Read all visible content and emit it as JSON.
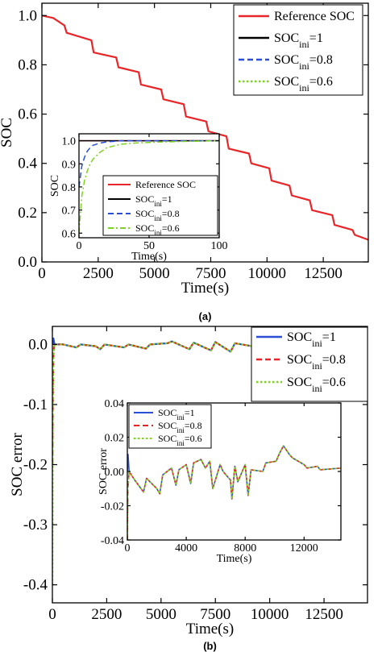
{
  "chart_data": [
    {
      "id": "a-main",
      "type": "line",
      "panel_label": "(a)",
      "title": "",
      "xlabel": "Time(s)",
      "ylabel": "SOC",
      "xlim": [
        0,
        14500
      ],
      "ylim": [
        0.0,
        1.05
      ],
      "xticks": [
        0,
        2500,
        5000,
        7500,
        10000,
        12500
      ],
      "xtick_labels": [
        "0",
        "2500",
        "5000",
        "7500",
        "10000",
        "12500"
      ],
      "yticks": [
        0.0,
        0.2,
        0.4,
        0.6,
        0.8,
        1.0
      ],
      "ytick_labels": [
        "0.0",
        "0.2",
        "0.4",
        "0.6",
        "0.8",
        "1.0"
      ],
      "legend_placement": "top-right",
      "series": [
        {
          "name": "Reference SOC",
          "legend_main": "Reference SOC",
          "legend_sub": "",
          "legend_suffix": "",
          "color": "#e8262a",
          "dash": "solid",
          "x": [
            0,
            500,
            1000,
            1100,
            2200,
            2300,
            3300,
            3400,
            4300,
            4400,
            5300,
            5400,
            6300,
            6400,
            7300,
            7400,
            8200,
            8300,
            9200,
            9300,
            10100,
            10200,
            11000,
            11100,
            11900,
            12000,
            12900,
            13000,
            13800,
            13900,
            14500
          ],
          "y": [
            1.0,
            0.99,
            0.96,
            0.93,
            0.9,
            0.85,
            0.83,
            0.79,
            0.77,
            0.72,
            0.7,
            0.66,
            0.64,
            0.59,
            0.57,
            0.53,
            0.51,
            0.46,
            0.44,
            0.4,
            0.38,
            0.33,
            0.31,
            0.27,
            0.25,
            0.21,
            0.19,
            0.15,
            0.13,
            0.11,
            0.09
          ]
        },
        {
          "name": "SOC_ini=1",
          "legend_main": "SOC",
          "legend_sub": "ini",
          "legend_suffix": "=1",
          "color": "#000000",
          "dash": "solid"
        },
        {
          "name": "SOC_ini=0.8",
          "legend_main": "SOC",
          "legend_sub": "ini",
          "legend_suffix": "=0.8",
          "color": "#2a4fd6",
          "dash": "dash"
        },
        {
          "name": "SOC_ini=0.6",
          "legend_main": "SOC",
          "legend_sub": "ini",
          "legend_suffix": "=0.6",
          "color": "#7ed321",
          "dash": "dot"
        }
      ]
    },
    {
      "id": "a-inset",
      "type": "line",
      "xlabel": "Time(s)",
      "ylabel": "SOC",
      "xlim": [
        0,
        100
      ],
      "ylim": [
        0.58,
        1.03
      ],
      "xticks": [
        0,
        50,
        100
      ],
      "xtick_labels": [
        "0",
        "50",
        "100"
      ],
      "yticks": [
        0.6,
        0.7,
        0.8,
        0.9,
        1.0
      ],
      "ytick_labels": [
        "0.6",
        "0.7",
        "0.8",
        "0.9",
        "1.0"
      ],
      "legend_placement": "bottom",
      "series": [
        {
          "name": "Reference SOC",
          "legend_main": "Reference SOC",
          "legend_sub": "",
          "legend_suffix": "",
          "color": "#e8262a",
          "dash": "solid",
          "x": [
            0,
            100
          ],
          "y": [
            1.0,
            1.0
          ]
        },
        {
          "name": "SOC_ini=1",
          "legend_main": "SOC",
          "legend_sub": "ini",
          "legend_suffix": "=1",
          "color": "#000000",
          "dash": "solid",
          "x": [
            0,
            100
          ],
          "y": [
            1.0,
            1.0
          ]
        },
        {
          "name": "SOC_ini=0.8",
          "legend_main": "SOC",
          "legend_sub": "ini",
          "legend_suffix": "=0.8",
          "color": "#2a4fd6",
          "dash": "dash",
          "x": [
            0,
            2,
            4,
            6,
            8,
            10,
            15,
            20,
            30,
            100
          ],
          "y": [
            0.8,
            0.89,
            0.93,
            0.955,
            0.97,
            0.98,
            0.99,
            0.995,
            1.0,
            1.0
          ]
        },
        {
          "name": "SOC_ini=0.6",
          "legend_main": "SOC",
          "legend_sub": "ini",
          "legend_suffix": "=0.6",
          "color": "#7ed321",
          "dash": "dashdot",
          "x": [
            0,
            2,
            4,
            6,
            8,
            10,
            15,
            20,
            30,
            40,
            60,
            100
          ],
          "y": [
            0.6,
            0.76,
            0.83,
            0.87,
            0.9,
            0.92,
            0.95,
            0.97,
            0.985,
            0.99,
            0.995,
            1.0
          ]
        }
      ]
    },
    {
      "id": "b-main",
      "type": "line",
      "panel_label": "(b)",
      "xlabel": "Time(s)",
      "ylabel": "SOC error",
      "xlim": [
        0,
        14500
      ],
      "ylim": [
        -0.43,
        0.03
      ],
      "xticks": [
        0,
        2500,
        5000,
        7500,
        10000,
        12500
      ],
      "xtick_labels": [
        "0",
        "2500",
        "5000",
        "7500",
        "10000",
        "12500"
      ],
      "yticks": [
        0.0,
        -0.1,
        -0.2,
        -0.3,
        -0.4
      ],
      "ytick_labels": [
        "0.0",
        "-0.1",
        "-0.2",
        "-0.3",
        "-0.4"
      ],
      "legend_placement": "top-right",
      "series": [
        {
          "name": "SOC_ini=1",
          "legend_main": "SOC",
          "legend_sub": "ini",
          "legend_suffix": "=1",
          "color": "#2a4fd6",
          "dash": "solid",
          "x": [
            0,
            50,
            100,
            500,
            1100,
            1300,
            2000,
            2200,
            2400,
            3300,
            3500,
            4300,
            4500,
            5300,
            5500,
            6300,
            6500,
            7300,
            7500,
            8200,
            8400,
            9200,
            9400,
            10100,
            10300,
            11000,
            11200,
            12000,
            12200,
            12900,
            13100,
            14500
          ],
          "y": [
            0.0,
            0.01,
            0.0,
            0.0,
            -0.005,
            0.0,
            -0.003,
            -0.008,
            0.0,
            -0.005,
            0.0,
            -0.007,
            0.0,
            0.002,
            0.005,
            -0.008,
            0.003,
            -0.01,
            0.004,
            -0.012,
            0.002,
            -0.003,
            0.004,
            0.0,
            0.003,
            -0.002,
            0.004,
            -0.004,
            0.003,
            0.002,
            0.0,
            0.0
          ]
        },
        {
          "name": "SOC_ini=0.8",
          "legend_main": "SOC",
          "legend_sub": "ini",
          "legend_suffix": "=0.8",
          "color": "#e8262a",
          "dash": "dash",
          "x": [
            0,
            30,
            60,
            100,
            500,
            1100,
            1300,
            2000,
            2200,
            2400,
            3300,
            3500,
            4300,
            4500,
            5300,
            5500,
            6300,
            6500,
            7300,
            7500,
            8200,
            8400,
            9200,
            9400,
            10100,
            10300,
            11000,
            11200,
            12000,
            12200,
            12900,
            13100,
            14500
          ],
          "y": [
            -0.2,
            -0.05,
            -0.01,
            0.0,
            0.0,
            -0.005,
            0.0,
            -0.003,
            -0.008,
            0.0,
            -0.005,
            0.0,
            -0.007,
            0.0,
            0.002,
            0.005,
            -0.008,
            0.003,
            -0.01,
            0.004,
            -0.012,
            0.002,
            -0.003,
            0.004,
            0.0,
            0.003,
            -0.002,
            0.004,
            -0.004,
            0.003,
            0.002,
            0.0,
            0.0
          ]
        },
        {
          "name": "SOC_ini=0.6",
          "legend_main": "SOC",
          "legend_sub": "ini",
          "legend_suffix": "=0.6",
          "color": "#7ed321",
          "dash": "dot",
          "x": [
            0,
            20,
            50,
            100,
            500,
            1100,
            1300,
            2000,
            2200,
            2400,
            3300,
            3500,
            4300,
            4500,
            5300,
            5500,
            6300,
            6500,
            7300,
            7500,
            8200,
            8400,
            9200,
            9400,
            10100,
            10300,
            11000,
            11200,
            12000,
            12200,
            12900,
            13100,
            14500
          ],
          "y": [
            -0.4,
            -0.1,
            -0.02,
            0.0,
            0.0,
            -0.005,
            0.0,
            -0.003,
            -0.008,
            0.0,
            -0.005,
            0.0,
            -0.007,
            0.0,
            0.002,
            0.005,
            -0.008,
            0.003,
            -0.01,
            0.004,
            -0.012,
            0.002,
            -0.003,
            0.004,
            0.0,
            0.003,
            -0.002,
            0.004,
            -0.004,
            0.003,
            0.002,
            0.0,
            0.0
          ]
        }
      ]
    },
    {
      "id": "b-inset",
      "type": "line",
      "xlabel": "Time(s)",
      "ylabel": "SOC error",
      "xlim": [
        0,
        14500
      ],
      "ylim": [
        -0.04,
        0.04
      ],
      "xticks": [
        0,
        4000,
        8000,
        12000
      ],
      "xtick_labels": [
        "0",
        "4000",
        "8000",
        "12000"
      ],
      "yticks": [
        0.04,
        0.02,
        0.0,
        -0.02,
        -0.04
      ],
      "ytick_labels": [
        "0.04",
        "0.02",
        "0.00",
        "-0.02",
        "-0.04"
      ],
      "legend_placement": "top-left",
      "series": [
        {
          "name": "SOC_ini=1",
          "legend_main": "SOC",
          "legend_sub": "ini",
          "legend_suffix": "=1",
          "color": "#2a4fd6",
          "dash": "solid",
          "x": [
            0,
            50,
            120,
            500,
            1100,
            1300,
            2000,
            2200,
            2400,
            3000,
            3300,
            3500,
            4000,
            4300,
            4500,
            5000,
            5300,
            5600,
            5800,
            6300,
            6500,
            7000,
            7100,
            7300,
            7500,
            8000,
            8200,
            8400,
            9200,
            9400,
            10100,
            10300,
            10600,
            11000,
            11200,
            12000,
            12200,
            12900,
            13100,
            14500
          ],
          "y": [
            0.0,
            0.01,
            0.0,
            -0.005,
            -0.012,
            -0.004,
            -0.01,
            -0.013,
            -0.002,
            0.002,
            -0.008,
            0.001,
            0.004,
            -0.007,
            0.005,
            0.007,
            0.002,
            0.006,
            -0.01,
            0.004,
            0.0,
            -0.005,
            -0.016,
            0.003,
            -0.006,
            0.004,
            -0.014,
            0.001,
            0.0,
            0.005,
            0.006,
            0.01,
            0.015,
            0.01,
            0.008,
            0.004,
            0.002,
            0.003,
            0.001,
            0.002
          ]
        },
        {
          "name": "SOC_ini=0.8",
          "legend_main": "SOC",
          "legend_sub": "ini",
          "legend_suffix": "=0.8",
          "color": "#e8262a",
          "dash": "dash",
          "x": [
            0,
            10,
            40,
            120,
            500,
            1100,
            1300,
            2000,
            2200,
            2400,
            3000,
            3300,
            3500,
            4000,
            4300,
            4500,
            5000,
            5300,
            5600,
            5800,
            6300,
            6500,
            7000,
            7100,
            7300,
            7500,
            8000,
            8200,
            8400,
            9200,
            9400,
            10100,
            10300,
            10600,
            11000,
            11200,
            12000,
            12200,
            12900,
            13100,
            14500
          ],
          "y": [
            -0.04,
            -0.03,
            -0.01,
            0.0,
            -0.005,
            -0.012,
            -0.004,
            -0.01,
            -0.013,
            -0.002,
            0.002,
            -0.008,
            0.001,
            0.004,
            -0.007,
            0.005,
            0.007,
            0.002,
            0.006,
            -0.01,
            0.004,
            0.0,
            -0.005,
            -0.016,
            0.003,
            -0.006,
            0.004,
            -0.014,
            0.001,
            0.0,
            0.005,
            0.006,
            0.01,
            0.015,
            0.01,
            0.008,
            0.004,
            0.002,
            0.003,
            0.001,
            0.002
          ]
        },
        {
          "name": "SOC_ini=0.6",
          "legend_main": "SOC",
          "legend_sub": "ini",
          "legend_suffix": "=0.6",
          "color": "#7ed321",
          "dash": "dot",
          "x": [
            0,
            10,
            40,
            120,
            500,
            1100,
            1300,
            2000,
            2200,
            2400,
            3000,
            3300,
            3500,
            4000,
            4300,
            4500,
            5000,
            5300,
            5600,
            5800,
            6300,
            6500,
            7000,
            7100,
            7300,
            7500,
            8000,
            8200,
            8400,
            9200,
            9400,
            10100,
            10300,
            10600,
            11000,
            11200,
            12000,
            12200,
            12900,
            13100,
            14500
          ],
          "y": [
            -0.04,
            -0.035,
            -0.012,
            0.0,
            -0.005,
            -0.012,
            -0.004,
            -0.01,
            -0.013,
            -0.002,
            0.002,
            -0.008,
            0.001,
            0.004,
            -0.007,
            0.005,
            0.007,
            0.002,
            0.006,
            -0.01,
            0.004,
            0.0,
            -0.005,
            -0.016,
            0.003,
            -0.006,
            0.004,
            -0.014,
            0.001,
            0.0,
            0.005,
            0.006,
            0.01,
            0.015,
            0.01,
            0.008,
            0.004,
            0.002,
            0.003,
            0.001,
            0.002
          ]
        }
      ]
    }
  ]
}
